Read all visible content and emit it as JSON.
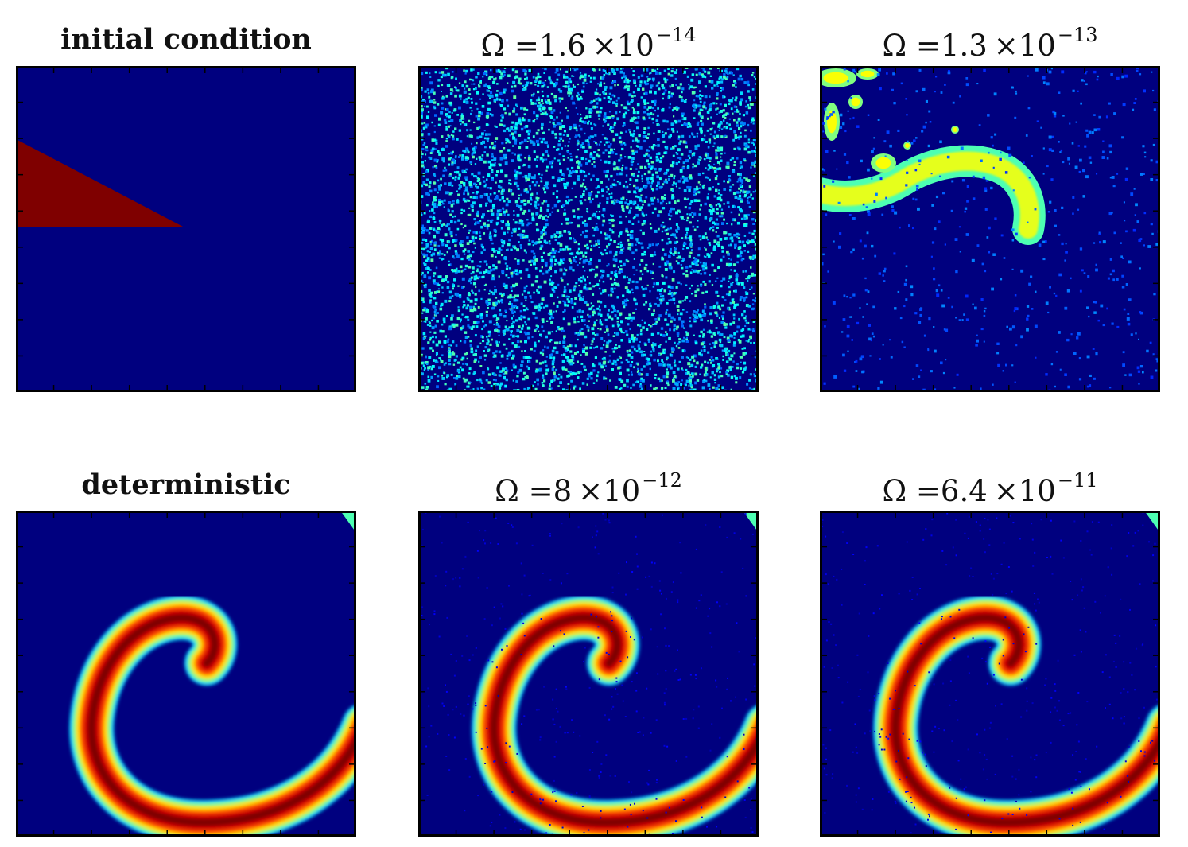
{
  "colors": {
    "background": "#00007f",
    "frame": "#000000",
    "colormap": "jet"
  },
  "chart_data": [
    {
      "type": "heatmap",
      "title": "initial condition",
      "title_style": "bold",
      "pattern": "triangle-wedge"
    },
    {
      "type": "heatmap",
      "title": "Ω =1.6 ×10",
      "title_parts": {
        "prefix": "Ω =1.6",
        "times": "×10",
        "exponent": "−14"
      },
      "pattern": "uniform-noise"
    },
    {
      "type": "heatmap",
      "title": "Ω =1.3 ×10",
      "title_parts": {
        "prefix": "Ω =1.3",
        "times": "×10",
        "exponent": "−13"
      },
      "pattern": "noisy-blobs"
    },
    {
      "type": "heatmap",
      "title": "deterministic",
      "title_style": "bold",
      "pattern": "spiral"
    },
    {
      "type": "heatmap",
      "title": "Ω =8 ×10",
      "title_parts": {
        "prefix": "Ω =8",
        "times": "×10",
        "exponent": "−12"
      },
      "pattern": "spiral-noisy"
    },
    {
      "type": "heatmap",
      "title": "Ω =6.4 ×10",
      "title_parts": {
        "prefix": "Ω =6.4",
        "times": "×10",
        "exponent": "−11"
      },
      "pattern": "spiral-noisy"
    }
  ]
}
